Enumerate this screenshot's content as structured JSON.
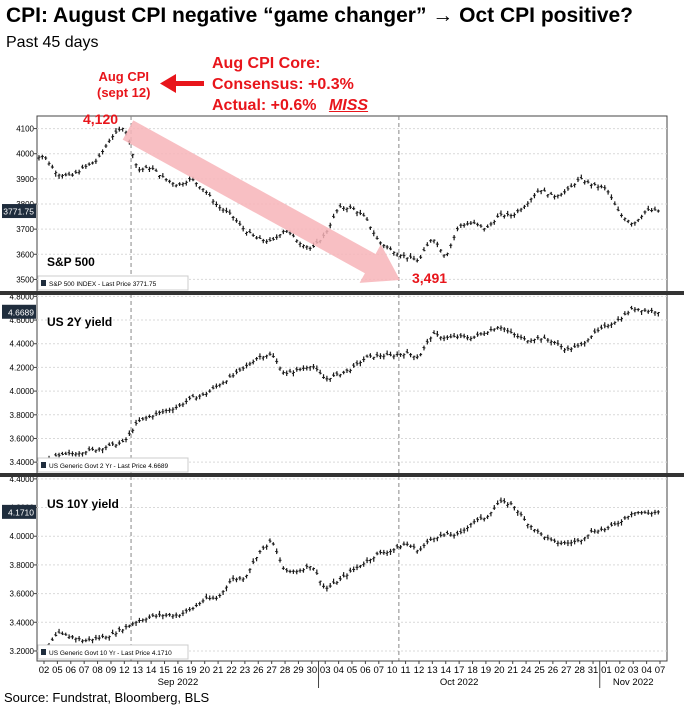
{
  "header": {
    "title": "CPI: August CPI negative “game changer” → Oct CPI positive?",
    "subtitle": "Past 45 days"
  },
  "annotations": {
    "aug_cpi_line1": "Aug CPI",
    "aug_cpi_line2": "(sept 12)",
    "core_line1": "Aug CPI Core:",
    "core_line2": "Consensus: +0.3%",
    "core_line3": "Actual: +0.6%",
    "core_miss": "MISS",
    "high_label": "4,120",
    "low_label": "3,491"
  },
  "footer": {
    "source": "Source: Fundstrat, Bloomberg, BLS"
  },
  "colors": {
    "accent_red": "#e8151b",
    "arrow_pink": "#f7b4b8",
    "navy_badge": "#1f2d3d",
    "ohlc": "#1a1a1a"
  },
  "chart_data": [
    {
      "type": "line",
      "title": "S&P 500",
      "legend": "S&P 500 INDEX - Last Price 3771.75",
      "last_value": "3771.75",
      "ylim": [
        3450,
        4150
      ],
      "yticks": [
        "3500",
        "3600",
        "3700",
        "3800",
        "3900",
        "4000",
        "4100"
      ],
      "ytick_values": [
        3500,
        3600,
        3700,
        3800,
        3900,
        4000,
        4100
      ],
      "x": [
        "02",
        "05",
        "06",
        "07",
        "08",
        "09",
        "12",
        "13",
        "14",
        "15",
        "16",
        "19",
        "20",
        "21",
        "22",
        "23",
        "26",
        "27",
        "28",
        "29",
        "30",
        "03",
        "04",
        "05",
        "06",
        "07",
        "10",
        "11",
        "12",
        "13",
        "14",
        "17",
        "18",
        "19",
        "20",
        "21",
        "24",
        "25",
        "26",
        "27",
        "28",
        "31",
        "01",
        "02",
        "03",
        "04",
        "07"
      ],
      "values": [
        3990,
        3920,
        3910,
        3945,
        3975,
        4065,
        4110,
        3935,
        3945,
        3900,
        3875,
        3900,
        3855,
        3790,
        3755,
        3695,
        3660,
        3650,
        3700,
        3650,
        3620,
        3680,
        3785,
        3785,
        3745,
        3650,
        3615,
        3590,
        3575,
        3670,
        3590,
        3715,
        3725,
        3700,
        3755,
        3755,
        3800,
        3860,
        3830,
        3850,
        3900,
        3875,
        3860,
        3760,
        3720,
        3775,
        3772
      ]
    },
    {
      "type": "line",
      "title": "US 2Y yield",
      "legend": "US Generic Govt 2 Yr - Last Price 4.6689",
      "last_value": "4.6689",
      "ylim": [
        3.3,
        4.82
      ],
      "yticks": [
        "3.4000",
        "3.6000",
        "3.8000",
        "4.0000",
        "4.2000",
        "4.4000",
        "4.6000",
        "4.8000"
      ],
      "ytick_values": [
        3.4,
        3.6,
        3.8,
        4.0,
        4.2,
        4.4,
        4.6,
        4.8
      ],
      "x": [
        "02",
        "05",
        "06",
        "07",
        "08",
        "09",
        "12",
        "13",
        "14",
        "15",
        "16",
        "19",
        "20",
        "21",
        "22",
        "23",
        "26",
        "27",
        "28",
        "29",
        "30",
        "03",
        "04",
        "05",
        "06",
        "07",
        "10",
        "11",
        "12",
        "13",
        "14",
        "17",
        "18",
        "19",
        "20",
        "21",
        "24",
        "25",
        "26",
        "27",
        "28",
        "31",
        "01",
        "02",
        "03",
        "04",
        "07"
      ],
      "values": [
        3.4,
        3.45,
        3.47,
        3.49,
        3.51,
        3.54,
        3.57,
        3.74,
        3.79,
        3.83,
        3.87,
        3.94,
        3.97,
        4.05,
        4.12,
        4.2,
        4.29,
        4.31,
        4.14,
        4.18,
        4.22,
        4.1,
        4.14,
        4.19,
        4.28,
        4.3,
        4.3,
        4.32,
        4.29,
        4.48,
        4.45,
        4.46,
        4.45,
        4.5,
        4.55,
        4.48,
        4.43,
        4.45,
        4.42,
        4.35,
        4.38,
        4.48,
        4.55,
        4.61,
        4.7,
        4.68,
        4.67
      ]
    },
    {
      "type": "line",
      "title": "US 10Y yield",
      "legend": "US Generic Govt 10 Yr - Last Price 4.1710",
      "last_value": "4.1710",
      "ylim": [
        3.13,
        4.42
      ],
      "yticks": [
        "3.2000",
        "3.4000",
        "3.6000",
        "3.8000",
        "4.0000",
        "4.2000",
        "4.4000"
      ],
      "ytick_values": [
        3.2,
        3.4,
        3.6,
        3.8,
        4.0,
        4.2,
        4.4
      ],
      "x": [
        "02",
        "05",
        "06",
        "07",
        "08",
        "09",
        "12",
        "13",
        "14",
        "15",
        "16",
        "19",
        "20",
        "21",
        "22",
        "23",
        "26",
        "27",
        "28",
        "29",
        "30",
        "03",
        "04",
        "05",
        "06",
        "07",
        "10",
        "11",
        "12",
        "13",
        "14",
        "17",
        "18",
        "19",
        "20",
        "21",
        "24",
        "25",
        "26",
        "27",
        "28",
        "31",
        "01",
        "02",
        "03",
        "04",
        "07"
      ],
      "values": [
        3.19,
        3.32,
        3.3,
        3.27,
        3.29,
        3.31,
        3.36,
        3.41,
        3.44,
        3.45,
        3.45,
        3.49,
        3.56,
        3.57,
        3.7,
        3.71,
        3.88,
        3.97,
        3.75,
        3.76,
        3.8,
        3.63,
        3.69,
        3.76,
        3.82,
        3.88,
        3.9,
        3.95,
        3.9,
        3.99,
        4.01,
        4.01,
        4.1,
        4.13,
        4.24,
        4.22,
        4.1,
        4.02,
        3.96,
        3.95,
        3.97,
        4.04,
        4.05,
        4.1,
        4.17,
        4.16,
        4.17
      ]
    }
  ],
  "x_axis": {
    "day_labels": [
      "02",
      "05",
      "06",
      "07",
      "08",
      "09",
      "12",
      "13",
      "14",
      "15",
      "16",
      "19",
      "20",
      "21",
      "22",
      "23",
      "26",
      "27",
      "28",
      "29",
      "30",
      "03",
      "04",
      "05",
      "06",
      "07",
      "10",
      "11",
      "12",
      "13",
      "14",
      "17",
      "18",
      "19",
      "20",
      "21",
      "24",
      "25",
      "26",
      "27",
      "28",
      "31",
      "01",
      "02",
      "03",
      "04",
      "07"
    ],
    "months": [
      "Sep 2022",
      "Oct 2022",
      "Nov 2022"
    ]
  }
}
